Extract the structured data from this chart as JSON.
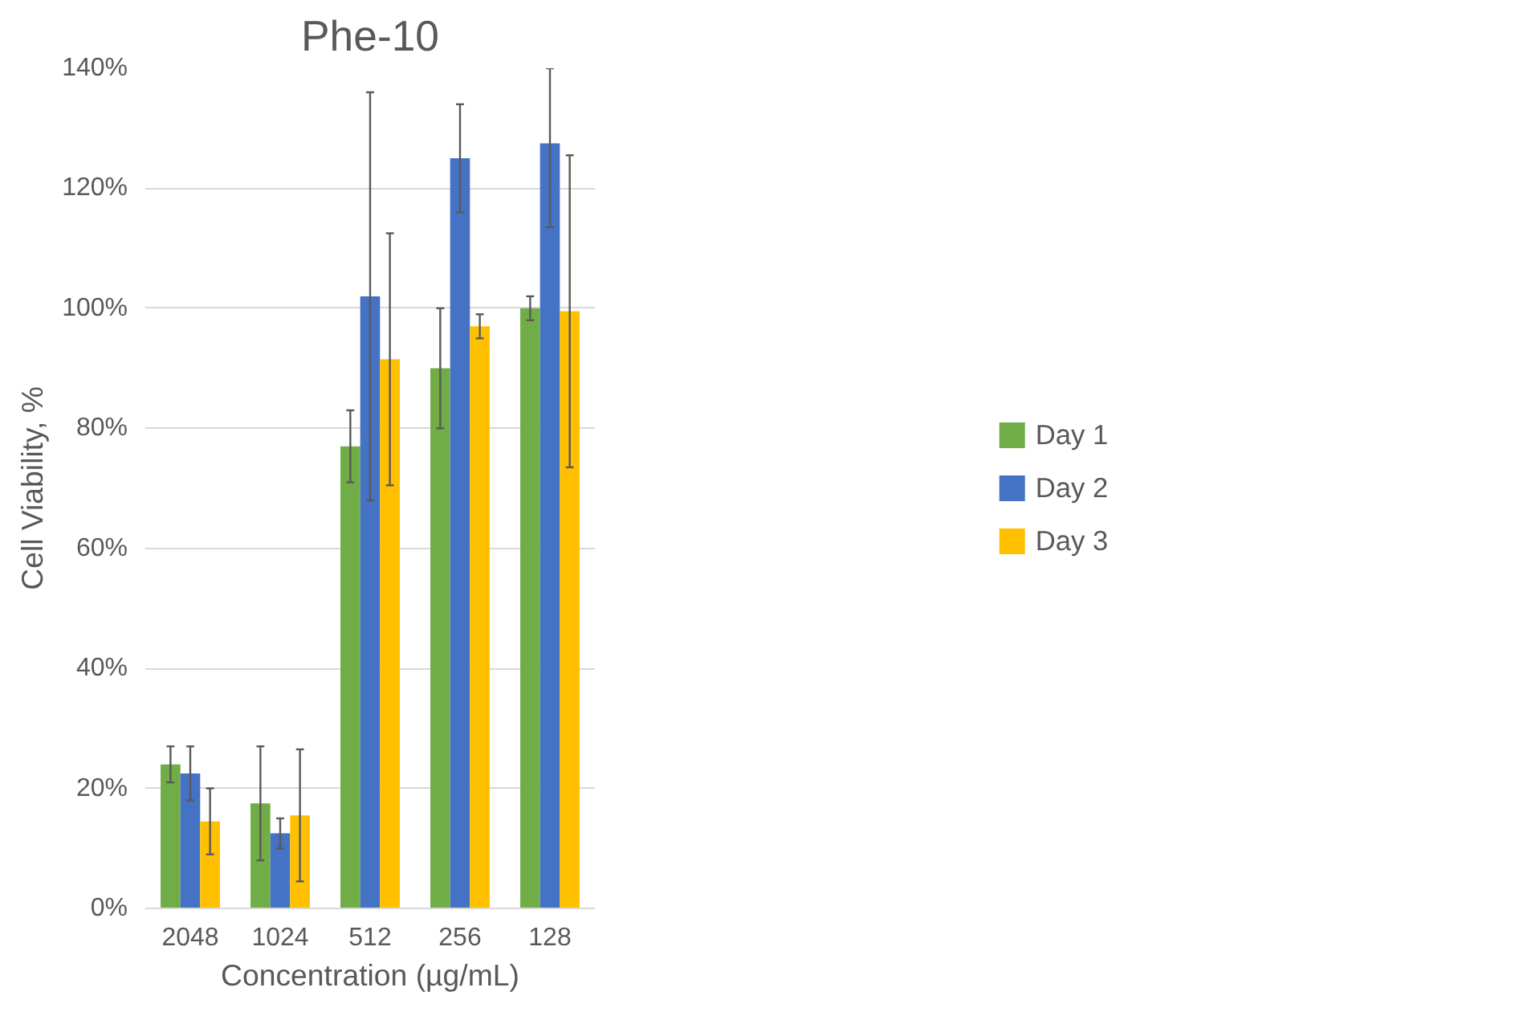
{
  "chart_data": {
    "type": "bar",
    "title": "Phe-10",
    "xlabel": "Concentration (µg/mL)",
    "ylabel": "Cell Viability, %",
    "categories": [
      "2048",
      "1024",
      "512",
      "256",
      "128"
    ],
    "series": [
      {
        "name": "Day 1",
        "color": "#70ad47",
        "values": [
          24,
          17.5,
          77,
          90,
          100
        ],
        "errors": [
          3,
          9.5,
          6,
          10,
          2
        ]
      },
      {
        "name": "Day 2",
        "color": "#4472c4",
        "values": [
          22.5,
          12.5,
          102,
          125,
          127.5
        ],
        "errors": [
          4.5,
          2.5,
          34,
          9,
          [
            113.5,
            140
          ]
        ]
      },
      {
        "name": "Day 3",
        "color": "#ffc000",
        "values": [
          14.5,
          15.5,
          91.5,
          97,
          99.5
        ],
        "errors": [
          5.5,
          11,
          21,
          2,
          26
        ]
      }
    ],
    "ylim": [
      0,
      140
    ],
    "yticks": [
      {
        "value": 0,
        "label": "0%"
      },
      {
        "value": 20,
        "label": "20%"
      },
      {
        "value": 40,
        "label": "40%"
      },
      {
        "value": 60,
        "label": "60%"
      },
      {
        "value": 80,
        "label": "80%"
      },
      {
        "value": 100,
        "label": "100%"
      },
      {
        "value": 120,
        "label": "120%"
      },
      {
        "value": 140,
        "label": "140%"
      }
    ],
    "grid": "y",
    "legend": "right"
  }
}
